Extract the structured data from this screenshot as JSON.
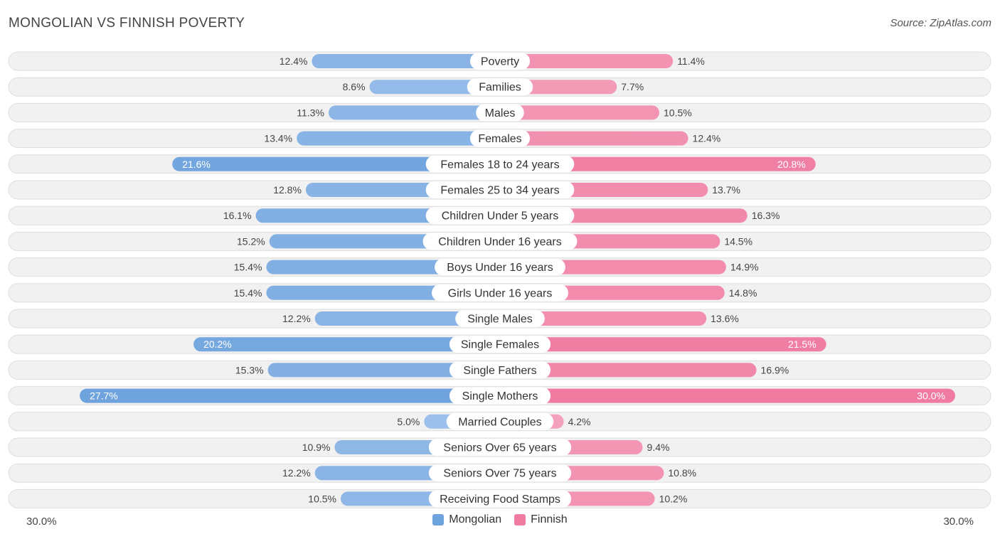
{
  "title": "MONGOLIAN VS FINNISH POVERTY",
  "source": "Source: ZipAtlas.com",
  "colors": {
    "mongolian": "#6fa3de",
    "mongolian_light": "#a9c8ee",
    "finnish": "#f07ba0",
    "finnish_light": "#f5a9c1"
  },
  "legend": {
    "mongolian_label": "Mongolian",
    "finnish_label": "Finnish"
  },
  "axis": {
    "left_label": "30.0%",
    "right_label": "30.0%"
  },
  "chart_data": {
    "type": "bar",
    "orientation": "horizontal-diverging",
    "title": "MONGOLIAN VS FINNISH POVERTY",
    "xlim": [
      0,
      30
    ],
    "categories": [
      "Poverty",
      "Families",
      "Males",
      "Females",
      "Females 18 to 24 years",
      "Females 25 to 34 years",
      "Children Under 5 years",
      "Children Under 16 years",
      "Boys Under 16 years",
      "Girls Under 16 years",
      "Single Males",
      "Single Females",
      "Single Fathers",
      "Single Mothers",
      "Married Couples",
      "Seniors Over 65 years",
      "Seniors Over 75 years",
      "Receiving Food Stamps"
    ],
    "series": [
      {
        "name": "Mongolian",
        "values": [
          12.4,
          8.6,
          11.3,
          13.4,
          21.6,
          12.8,
          16.1,
          15.2,
          15.4,
          15.4,
          12.2,
          20.2,
          15.3,
          27.7,
          5.0,
          10.9,
          12.2,
          10.5
        ],
        "labels": [
          "12.4%",
          "8.6%",
          "11.3%",
          "13.4%",
          "21.6%",
          "12.8%",
          "16.1%",
          "15.2%",
          "15.4%",
          "15.4%",
          "12.2%",
          "20.2%",
          "15.3%",
          "27.7%",
          "5.0%",
          "10.9%",
          "12.2%",
          "10.5%"
        ]
      },
      {
        "name": "Finnish",
        "values": [
          11.4,
          7.7,
          10.5,
          12.4,
          20.8,
          13.7,
          16.3,
          14.5,
          14.9,
          14.8,
          13.6,
          21.5,
          16.9,
          30.0,
          4.2,
          9.4,
          10.8,
          10.2
        ],
        "labels": [
          "11.4%",
          "7.7%",
          "10.5%",
          "12.4%",
          "20.8%",
          "13.7%",
          "16.3%",
          "14.5%",
          "14.9%",
          "14.8%",
          "13.6%",
          "21.5%",
          "16.9%",
          "30.0%",
          "4.2%",
          "9.4%",
          "10.8%",
          "10.2%"
        ]
      }
    ]
  }
}
